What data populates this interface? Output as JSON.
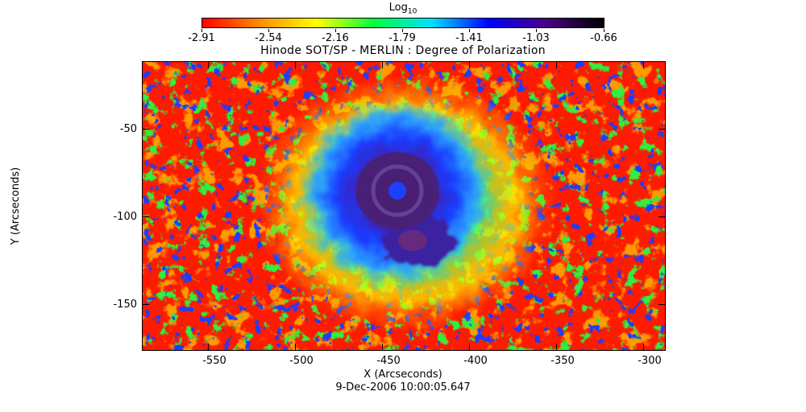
{
  "colorbar": {
    "title_base": "Log",
    "title_subscript": "10",
    "tick_labels": [
      "-2.91",
      "-2.54",
      "-2.16",
      "-1.79",
      "-1.41",
      "-1.03",
      "-0.66"
    ],
    "colors": [
      "#ff0000",
      "#ff8c00",
      "#ffff00",
      "#00ff40",
      "#00e0ff",
      "#0000ff",
      "#4b0082",
      "#000000"
    ]
  },
  "title": "Hinode SOT/SP - MERLIN : Degree of Polarization",
  "axes": {
    "x_title": "X (Arcseconds)",
    "y_title": "Y (Arcseconds)",
    "x_ticks": [
      "-550",
      "-500",
      "-450",
      "-400",
      "-350",
      "-300"
    ],
    "y_ticks": [
      "-50",
      "-100",
      "-150"
    ],
    "xlim": [
      -592,
      -292
    ],
    "ylim": [
      -176,
      -15
    ]
  },
  "timestamp": "9-Dec-2006 10:00:05.647",
  "image": {
    "subject": "sunspot degree-of-polarization map",
    "sunspot_center": [
      -445,
      -85
    ]
  }
}
